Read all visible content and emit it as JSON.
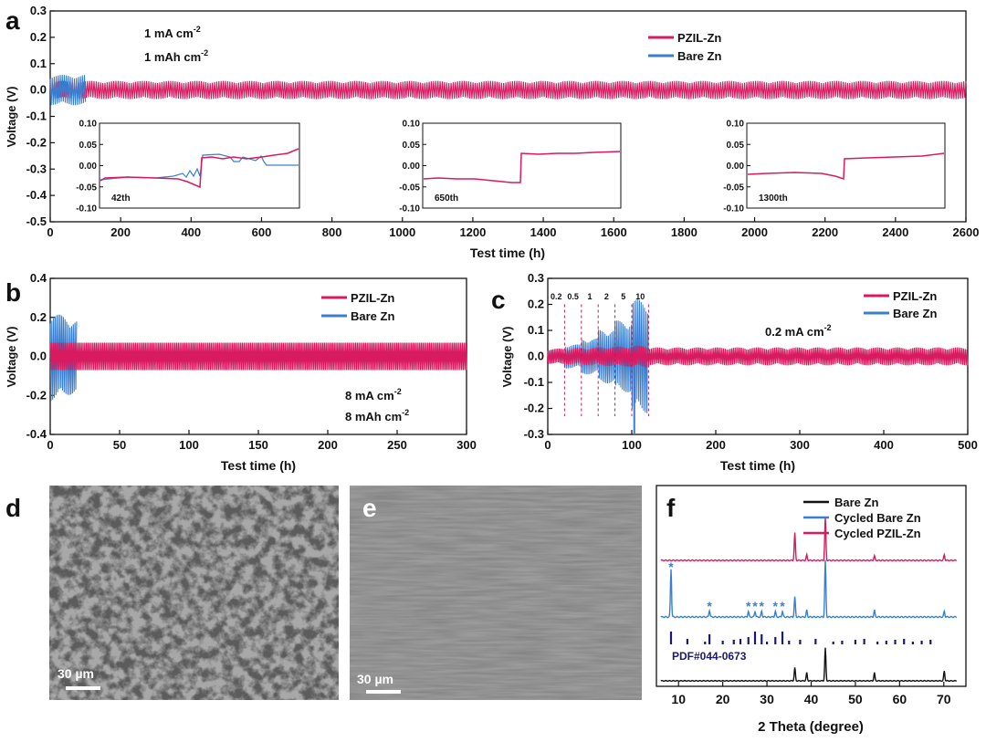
{
  "colors": {
    "pzil": "#d81b60",
    "bare": "#3a7fcf",
    "black": "#111111",
    "pdf": "#1a1a6e"
  },
  "panels": {
    "a": "a",
    "b": "b",
    "c": "c",
    "d": "d",
    "e": "e",
    "f": "f"
  },
  "chart_data": [
    {
      "id": "a",
      "type": "line",
      "xlabel": "Test time (h)",
      "ylabel": "Voltage (V)",
      "xlim": [
        0,
        2600
      ],
      "ylim": [
        -0.5,
        0.3
      ],
      "xticks": [
        0,
        200,
        400,
        600,
        800,
        1000,
        1200,
        1400,
        1600,
        1800,
        2000,
        2200,
        2400,
        2600
      ],
      "yticks": [
        -0.5,
        -0.4,
        -0.3,
        -0.2,
        -0.1,
        0.0,
        0.1,
        0.2,
        0.3
      ],
      "ytick_labels": [
        "-0.5",
        "-0.4",
        "-0.3",
        "-0.2",
        "-0.1",
        "0.0",
        "0.1",
        "0.2",
        "0.3"
      ],
      "legend": [
        "PZIL-Zn",
        "Bare Zn"
      ],
      "annotations": [
        "1 mA cm",
        "1 mAh cm"
      ],
      "sup": "-2",
      "series": [
        {
          "name": "PZIL-Zn",
          "x_range": [
            0,
            2600
          ],
          "amplitude": 0.03
        },
        {
          "name": "Bare Zn",
          "x_range": [
            0,
            100
          ],
          "amplitude": 0.05
        }
      ],
      "insets": [
        {
          "label": "42th",
          "ylim": [
            -0.1,
            0.1
          ],
          "yticks": [
            "0.10",
            "0.05",
            "0.00",
            "-0.05",
            "-0.10"
          ]
        },
        {
          "label": "650th",
          "ylim": [
            -0.1,
            0.1
          ],
          "yticks": [
            "0.10",
            "0.05",
            "0.00",
            "-0.05",
            "-0.10"
          ]
        },
        {
          "label": "1300th",
          "ylim": [
            -0.1,
            0.1
          ],
          "yticks": [
            "0.10",
            "0.05",
            "0.00",
            "-0.05",
            "-0.10"
          ]
        }
      ]
    },
    {
      "id": "b",
      "type": "line",
      "xlabel": "Test time (h)",
      "ylabel": "Voltage (V)",
      "xlim": [
        0,
        300
      ],
      "ylim": [
        -0.4,
        0.4
      ],
      "xticks": [
        0,
        50,
        100,
        150,
        200,
        250,
        300
      ],
      "yticks": [
        -0.4,
        -0.2,
        0.0,
        0.2,
        0.4
      ],
      "ytick_labels": [
        "-0.4",
        "-0.2",
        "0.0",
        "0.2",
        "0.4"
      ],
      "legend": [
        "PZIL-Zn",
        "Bare Zn"
      ],
      "annotations": [
        "8 mA cm",
        "8 mAh cm"
      ],
      "sup": "-2",
      "series": [
        {
          "name": "PZIL-Zn",
          "x_range": [
            0,
            300
          ],
          "amplitude": 0.07
        },
        {
          "name": "Bare Zn",
          "x_range": [
            0,
            19
          ],
          "amplitude": 0.2
        }
      ]
    },
    {
      "id": "c",
      "type": "line",
      "xlabel": "Test time (h)",
      "ylabel": "Voltage (V)",
      "xlim": [
        0,
        500
      ],
      "ylim": [
        -0.3,
        0.3
      ],
      "xticks": [
        0,
        100,
        200,
        300,
        400,
        500
      ],
      "yticks": [
        -0.3,
        -0.2,
        -0.1,
        0.0,
        0.1,
        0.2,
        0.3
      ],
      "ytick_labels": [
        "-0.3",
        "-0.2",
        "-0.1",
        "0.0",
        "0.1",
        "0.2",
        "0.3"
      ],
      "legend": [
        "PZIL-Zn",
        "Bare Zn"
      ],
      "annotations": [
        "0.2 mA cm"
      ],
      "sup": "-2",
      "rate_labels": [
        "0.2",
        "0.5",
        "1",
        "2",
        "5",
        "10"
      ],
      "rate_boundaries": [
        20,
        40,
        60,
        80,
        100,
        120
      ],
      "series": [
        {
          "name": "PZIL-Zn",
          "x_range": [
            0,
            500
          ],
          "amplitude": 0.03
        },
        {
          "name": "Bare Zn",
          "x_range": [
            0,
            160
          ],
          "amplitude": 0.19
        }
      ]
    },
    {
      "id": "f",
      "type": "line",
      "xlabel": "2 Theta (degree)",
      "xlim": [
        5,
        75
      ],
      "xticks": [
        10,
        20,
        30,
        40,
        50,
        60,
        70
      ],
      "legend": [
        "Bare Zn",
        "Cycled Bare Zn",
        "Cycled PZIL-Zn"
      ],
      "reference": "PDF#044-0673",
      "zn_peaks": [
        36.3,
        39.0,
        43.2,
        54.3,
        70.1
      ],
      "zn_peak_heights": [
        0.4,
        0.25,
        1.0,
        0.25,
        0.3
      ],
      "cycled_bare_extra_peaks": [
        8.3,
        17.0,
        25.8,
        27.3,
        28.8,
        31.9,
        33.5
      ],
      "marker": "*",
      "star_groups": [
        "*",
        "*",
        "***",
        "**"
      ]
    }
  ],
  "sem": [
    {
      "panel": "d",
      "scale": "30 µm"
    },
    {
      "panel": "e",
      "scale": "30 µm"
    }
  ]
}
